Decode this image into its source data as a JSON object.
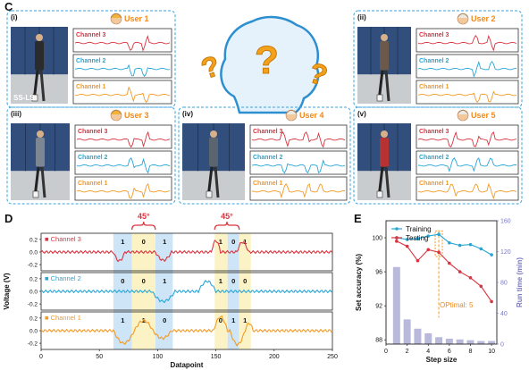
{
  "panel_c": {
    "label": "C",
    "users": [
      {
        "index": "(i)",
        "name": "User 1",
        "tag": "SS-LS"
      },
      {
        "index": "(ii)",
        "name": "User 2"
      },
      {
        "index": "(iii)",
        "name": "User 3"
      },
      {
        "index": "(iv)",
        "name": "User 4"
      },
      {
        "index": "(v)",
        "name": "User 5"
      }
    ],
    "channels": [
      "Channel 3",
      "Channel 2",
      "Channel 1"
    ],
    "channel_colors": [
      "#d9343f",
      "#27a6d6",
      "#f29a26"
    ]
  },
  "panel_d": {
    "label": "D",
    "ylabel": "Voltage (V)",
    "xlabel": "Datapoint",
    "angle_label": "45°",
    "xticks": [
      "0",
      "50",
      "100",
      "150",
      "200",
      "250"
    ],
    "channels": [
      {
        "name": "Channel 3",
        "yticks": [
          "0.2",
          "0.0",
          "-0.2"
        ],
        "bits": [
          "1",
          "0",
          "1",
          "1",
          "0",
          "1"
        ]
      },
      {
        "name": "Channel 2",
        "yticks": [
          "0.2",
          "0.0",
          "-0.2"
        ],
        "bits": [
          "0",
          "0",
          "1",
          "1",
          "0",
          "0"
        ]
      },
      {
        "name": "Channel 1",
        "yticks": [
          "0.2",
          "0.0",
          "-0.2"
        ],
        "bits": [
          "1",
          "1",
          "0",
          "0",
          "1",
          "1"
        ]
      }
    ]
  },
  "panel_e": {
    "label": "E",
    "annotation": "OPtimal: 5",
    "chart_data": {
      "type": "line",
      "xlabel": "Step size",
      "ylabel": "Set accuracy (%)",
      "y2label": "Run time (min)",
      "x_ticks": [
        "0",
        "2",
        "4",
        "6",
        "8",
        "10"
      ],
      "y_ticks": [
        "88",
        "92",
        "96",
        "100"
      ],
      "y2_ticks": [
        "0",
        "40",
        "80",
        "120",
        "160"
      ],
      "xlim": [
        0,
        10.5
      ],
      "ylim": [
        87.5,
        102
      ],
      "y2lim": [
        0,
        160
      ],
      "legend_position": "top-left",
      "series": [
        {
          "name": "Training",
          "color": "#27a6d6",
          "x": [
            1,
            2,
            3,
            4,
            5,
            6,
            7,
            8,
            9,
            10
          ],
          "values": [
            100,
            99.8,
            99.9,
            100.2,
            100.4,
            99.4,
            99.1,
            99.2,
            98.7,
            98.0
          ]
        },
        {
          "name": "Testing",
          "color": "#d9343f",
          "x": [
            1,
            2,
            3,
            4,
            5,
            6,
            7,
            8,
            9,
            10
          ],
          "values": [
            99.6,
            99.0,
            97.3,
            98.6,
            98.3,
            97.0,
            96.0,
            95.3,
            94.3,
            92.5
          ]
        }
      ],
      "bars": {
        "x": [
          1,
          2,
          3,
          4,
          5,
          6,
          7,
          8,
          9,
          10
        ],
        "values": [
          100,
          32,
          20,
          14,
          9,
          7,
          6,
          5,
          4,
          4
        ],
        "color": "#b9b9dc"
      }
    }
  }
}
